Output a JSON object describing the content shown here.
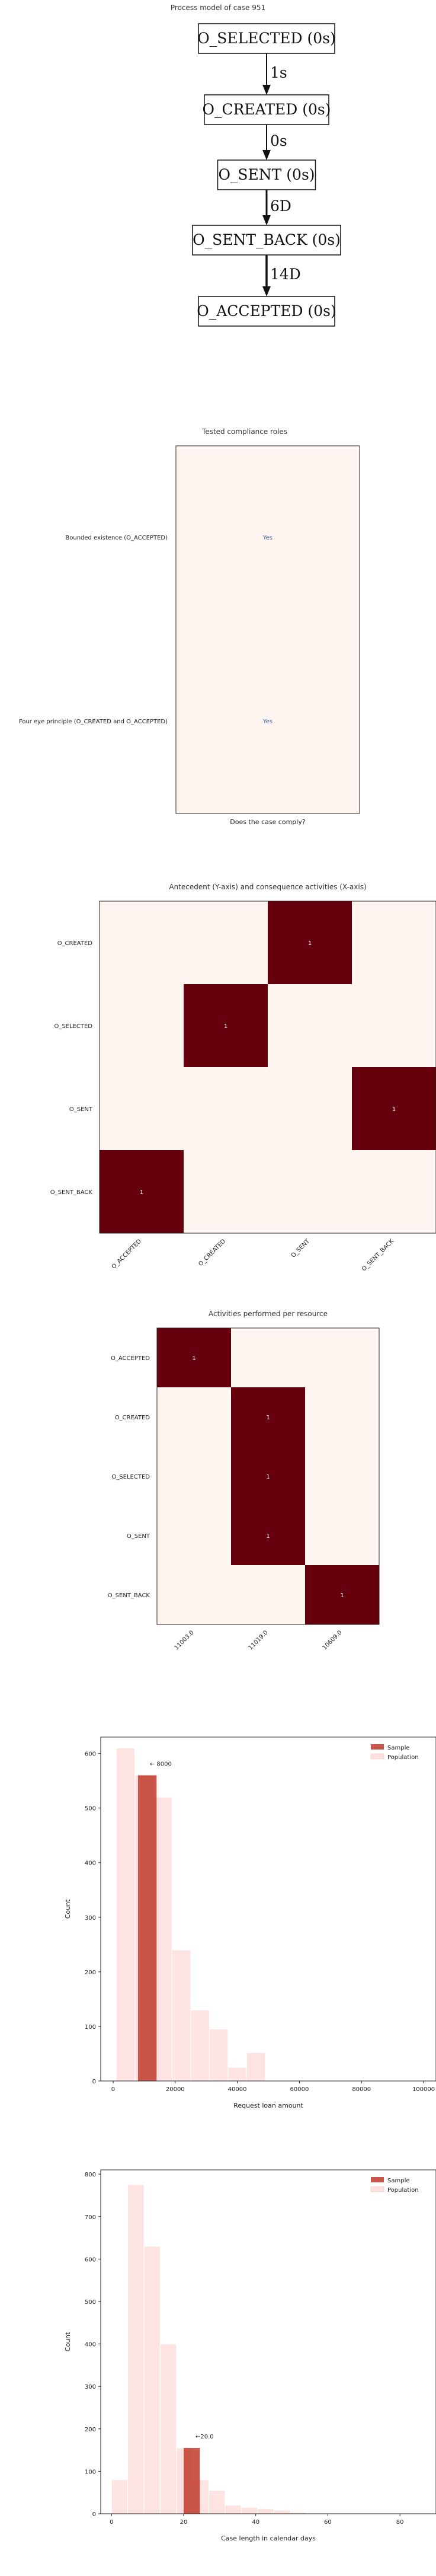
{
  "process_model": {
    "title": "Process model of case 951",
    "nodes": [
      "O_SELECTED (0s)",
      "O_CREATED (0s)",
      "O_SENT (0s)",
      "O_SENT_BACK (0s)",
      "O_ACCEPTED (0s)"
    ],
    "edges": [
      {
        "from": 0,
        "to": 1,
        "label": "1s"
      },
      {
        "from": 1,
        "to": 2,
        "label": "0s"
      },
      {
        "from": 2,
        "to": 3,
        "label": "6D"
      },
      {
        "from": 3,
        "to": 4,
        "label": "14D"
      }
    ]
  },
  "chart_data": [
    {
      "type": "heatmap",
      "title": "Tested compliance roles",
      "xlabel": "Does the case comply?",
      "rows": [
        "Bounded existence (O_ACCEPTED)",
        "Four eye principle (O_CREATED and O_ACCEPTED)"
      ],
      "cells": [
        "Yes",
        "Yes"
      ],
      "colors": {
        "background": "#fff5f0",
        "text": "#3b5998"
      }
    },
    {
      "type": "heatmap",
      "title": "Antecedent (Y-axis) and consequence activities (X-axis)",
      "rows": [
        "O_CREATED",
        "O_SELECTED",
        "O_SENT",
        "O_SENT_BACK"
      ],
      "columns": [
        "O_ACCEPTED",
        "O_CREATED",
        "O_SENT",
        "O_SENT_BACK"
      ],
      "values": [
        [
          0,
          0,
          1,
          0
        ],
        [
          0,
          1,
          0,
          0
        ],
        [
          0,
          0,
          0,
          1
        ],
        [
          1,
          0,
          0,
          0
        ]
      ],
      "colors": {
        "low": "#fff5f0",
        "high": "#67000d"
      }
    },
    {
      "type": "heatmap",
      "title": "Activities performed per resource",
      "rows": [
        "O_ACCEPTED",
        "O_CREATED",
        "O_SELECTED",
        "O_SENT",
        "O_SENT_BACK"
      ],
      "columns": [
        "11003.0",
        "11019.0",
        "10609.0"
      ],
      "values": [
        [
          1,
          0,
          0
        ],
        [
          0,
          1,
          0
        ],
        [
          0,
          1,
          0
        ],
        [
          0,
          1,
          0
        ],
        [
          0,
          0,
          1
        ]
      ],
      "colors": {
        "low": "#fff5f0",
        "high": "#67000d"
      }
    },
    {
      "type": "bar",
      "xlabel": "Request loan amount",
      "ylabel": "Count",
      "xlim": [
        -4000,
        104000
      ],
      "ylim": [
        0,
        630
      ],
      "xticks": [
        0,
        20000,
        40000,
        60000,
        80000,
        100000
      ],
      "yticks": [
        0,
        100,
        200,
        300,
        400,
        500,
        600
      ],
      "bin_width": 6000,
      "series": [
        {
          "name": "Sample",
          "bins": [
            {
              "x0": 8000,
              "x1": 14000,
              "count": 560
            }
          ]
        },
        {
          "name": "Population",
          "bins": [
            {
              "x0": 1000,
              "x1": 7000,
              "count": 610
            },
            {
              "x0": 7000,
              "x1": 13000,
              "count": 560
            },
            {
              "x0": 13000,
              "x1": 19000,
              "count": 520
            },
            {
              "x0": 19000,
              "x1": 25000,
              "count": 240
            },
            {
              "x0": 25000,
              "x1": 31000,
              "count": 130
            },
            {
              "x0": 31000,
              "x1": 37000,
              "count": 95
            },
            {
              "x0": 37000,
              "x1": 43000,
              "count": 25
            },
            {
              "x0": 43000,
              "x1": 49000,
              "count": 52
            }
          ]
        }
      ],
      "annotation": {
        "text": "← 8000",
        "x": 8000,
        "y": 560
      },
      "legend": "top-right",
      "colors": {
        "sample": "#c0392b",
        "population": "#fde0dd"
      }
    },
    {
      "type": "bar",
      "xlabel": "Case length in calendar days",
      "ylabel": "Count",
      "xlim": [
        -3,
        90
      ],
      "ylim": [
        0,
        810
      ],
      "xticks": [
        0,
        20,
        40,
        60,
        80
      ],
      "yticks": [
        0,
        100,
        200,
        300,
        400,
        500,
        600,
        700,
        800
      ],
      "bin_width": 4.5,
      "series": [
        {
          "name": "Sample",
          "bins": [
            {
              "x0": 20,
              "x1": 24.5,
              "count": 155
            }
          ]
        },
        {
          "name": "Population",
          "bins": [
            {
              "x0": 0,
              "x1": 4.5,
              "count": 80
            },
            {
              "x0": 4.5,
              "x1": 9,
              "count": 775
            },
            {
              "x0": 9,
              "x1": 13.5,
              "count": 630
            },
            {
              "x0": 13.5,
              "x1": 18,
              "count": 400
            },
            {
              "x0": 18,
              "x1": 22.5,
              "count": 155
            },
            {
              "x0": 22.5,
              "x1": 27,
              "count": 80
            },
            {
              "x0": 27,
              "x1": 31.5,
              "count": 55
            },
            {
              "x0": 31.5,
              "x1": 36,
              "count": 20
            },
            {
              "x0": 36,
              "x1": 40.5,
              "count": 15
            },
            {
              "x0": 40.5,
              "x1": 45,
              "count": 12
            },
            {
              "x0": 45,
              "x1": 49.5,
              "count": 8
            },
            {
              "x0": 49.5,
              "x1": 54,
              "count": 3
            }
          ]
        }
      ],
      "annotation": {
        "text": "←20.0",
        "x": 20,
        "y": 155
      },
      "legend": "top-right",
      "colors": {
        "sample": "#c0392b",
        "population": "#fde0dd"
      }
    }
  ]
}
